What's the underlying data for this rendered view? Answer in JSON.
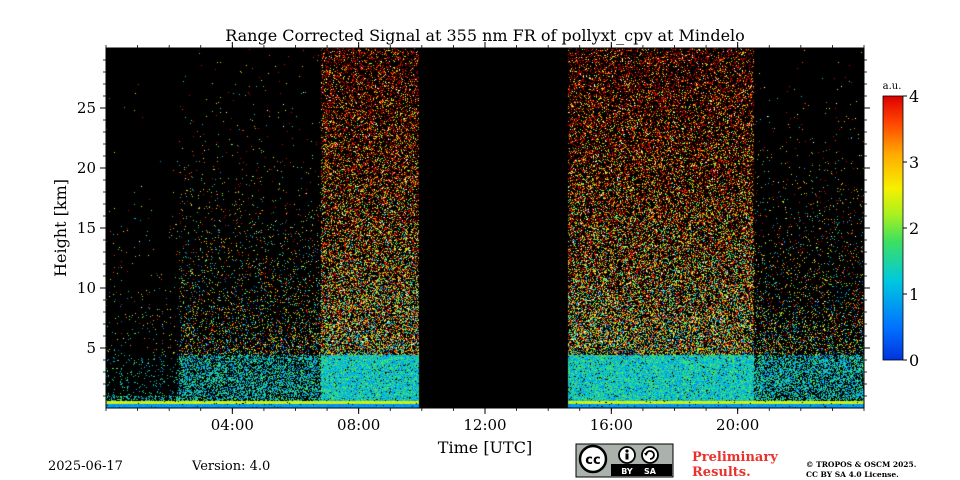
{
  "chart_data": {
    "type": "heatmap",
    "title": "Range Corrected Signal at 355 nm FR of pollyxt_cpv at Mindelo",
    "xlabel": "Time [UTC]",
    "ylabel": "Height [km]",
    "x_range_hours": [
      0,
      24
    ],
    "x_tick_hours": [
      4,
      8,
      12,
      16,
      20
    ],
    "x_tick_labels": [
      "04:00",
      "08:00",
      "12:00",
      "16:00",
      "20:00"
    ],
    "y_range_km": [
      0,
      30
    ],
    "y_ticks": [
      5,
      10,
      15,
      20,
      25
    ],
    "colorbar": {
      "label": "a.u.",
      "range": [
        0,
        4
      ],
      "ticks": [
        0,
        1,
        2,
        3,
        4
      ],
      "colormap": "jet"
    },
    "no_data_interval_hours": [
      9.9,
      14.6
    ],
    "background_color": "#000000",
    "grid": false
  },
  "footer": {
    "date": "2025-06-17",
    "version": "Version: 4.0",
    "preliminary_line1": "Preliminary",
    "preliminary_line2": "Results.",
    "copyright_line1": "© TROPOS & OSCM 2025.",
    "copyright_line2": "CC BY SA 4.0 License.",
    "license_badge": {
      "text_cc": "cc",
      "text_by": "BY",
      "text_sa": "SA",
      "icons": [
        "cc-icon",
        "attribution-icon",
        "share-alike-icon"
      ]
    }
  }
}
